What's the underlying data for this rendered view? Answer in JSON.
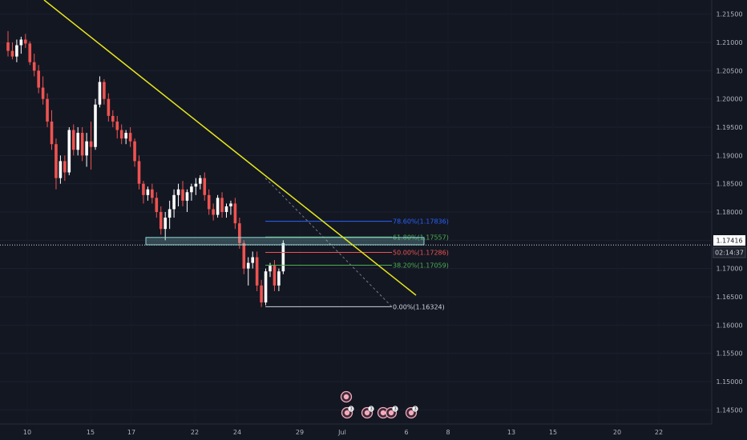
{
  "chart_data": {
    "type": "candlestick",
    "ylim": [
      1.1425,
      1.2175
    ],
    "y_ticks": [
      "1.21500",
      "1.21000",
      "1.20500",
      "1.20000",
      "1.19500",
      "1.19000",
      "1.18500",
      "1.18000",
      "1.17500",
      "1.17000",
      "1.16500",
      "1.16000",
      "1.15500",
      "1.15000",
      "1.14500"
    ],
    "x_ticks": [
      "10",
      "15",
      "17",
      "22",
      "24",
      "29",
      "Jul",
      "6",
      "8",
      "13",
      "15",
      "20",
      "22"
    ],
    "current_price": "1.17416",
    "countdown": "02:14:37",
    "colors": {
      "up": "#ffffff",
      "down": "#ef5350",
      "background": "#131722",
      "trendline": "#e6e619",
      "zone": "#8fd9d9"
    },
    "candles": [
      [
        1.21,
        1.212,
        1.2075,
        1.2085
      ],
      [
        1.2085,
        1.21,
        1.207,
        1.2075
      ],
      [
        1.2075,
        1.2105,
        1.2065,
        1.2095
      ],
      [
        1.2095,
        1.211,
        1.208,
        1.2105
      ],
      [
        1.2105,
        1.2115,
        1.209,
        1.2098
      ],
      [
        1.2098,
        1.2102,
        1.206,
        1.2065
      ],
      [
        1.2065,
        1.208,
        1.204,
        1.205
      ],
      [
        1.205,
        1.206,
        1.201,
        1.202
      ],
      [
        1.202,
        1.204,
        1.199,
        1.2
      ],
      [
        1.2,
        1.201,
        1.195,
        1.196
      ],
      [
        1.196,
        1.198,
        1.191,
        1.192
      ],
      [
        1.192,
        1.193,
        1.184,
        1.186
      ],
      [
        1.186,
        1.19,
        1.185,
        1.189
      ],
      [
        1.189,
        1.19,
        1.1855,
        1.187
      ],
      [
        1.187,
        1.195,
        1.1865,
        1.1945
      ],
      [
        1.1945,
        1.1955,
        1.19,
        1.191
      ],
      [
        1.191,
        1.195,
        1.19,
        1.194
      ],
      [
        1.194,
        1.195,
        1.189,
        1.19
      ],
      [
        1.19,
        1.194,
        1.188,
        1.1925
      ],
      [
        1.1925,
        1.196,
        1.1875,
        1.1915
      ],
      [
        1.1915,
        1.2,
        1.191,
        1.199
      ],
      [
        1.199,
        1.204,
        1.1985,
        1.203
      ],
      [
        1.203,
        1.2035,
        1.199,
        1.2
      ],
      [
        1.2,
        1.201,
        1.196,
        1.197
      ],
      [
        1.197,
        1.198,
        1.195,
        1.196
      ],
      [
        1.196,
        1.197,
        1.193,
        1.1945
      ],
      [
        1.1945,
        1.1955,
        1.192,
        1.193
      ],
      [
        1.193,
        1.1945,
        1.192,
        1.194
      ],
      [
        1.194,
        1.195,
        1.1915,
        1.1925
      ],
      [
        1.1925,
        1.193,
        1.188,
        1.189
      ],
      [
        1.189,
        1.19,
        1.184,
        1.185
      ],
      [
        1.185,
        1.1855,
        1.1815,
        1.183
      ],
      [
        1.183,
        1.1845,
        1.182,
        1.184
      ],
      [
        1.184,
        1.185,
        1.1815,
        1.1825
      ],
      [
        1.1825,
        1.1835,
        1.179,
        1.18
      ],
      [
        1.18,
        1.181,
        1.176,
        1.177
      ],
      [
        1.177,
        1.18,
        1.175,
        1.179
      ],
      [
        1.179,
        1.182,
        1.177,
        1.1805
      ],
      [
        1.1805,
        1.184,
        1.179,
        1.183
      ],
      [
        1.183,
        1.185,
        1.181,
        1.184
      ],
      [
        1.184,
        1.1855,
        1.181,
        1.182
      ],
      [
        1.182,
        1.184,
        1.18,
        1.1835
      ],
      [
        1.1835,
        1.185,
        1.182,
        1.1845
      ],
      [
        1.1845,
        1.186,
        1.183,
        1.185
      ],
      [
        1.185,
        1.1865,
        1.184,
        1.186
      ],
      [
        1.186,
        1.187,
        1.182,
        1.183
      ],
      [
        1.183,
        1.184,
        1.1795,
        1.1805
      ],
      [
        1.1805,
        1.1815,
        1.1785,
        1.1795
      ],
      [
        1.1795,
        1.183,
        1.179,
        1.1825
      ],
      [
        1.1825,
        1.1835,
        1.179,
        1.18
      ],
      [
        1.18,
        1.1815,
        1.179,
        1.181
      ],
      [
        1.181,
        1.182,
        1.1795,
        1.1815
      ],
      [
        1.1815,
        1.1825,
        1.177,
        1.178
      ],
      [
        1.178,
        1.179,
        1.1735,
        1.1745
      ],
      [
        1.1745,
        1.175,
        1.169,
        1.17
      ],
      [
        1.17,
        1.172,
        1.167,
        1.171
      ],
      [
        1.171,
        1.173,
        1.17,
        1.172
      ],
      [
        1.172,
        1.173,
        1.166,
        1.167
      ],
      [
        1.167,
        1.168,
        1.1632,
        1.164
      ],
      [
        1.164,
        1.17,
        1.1635,
        1.1695
      ],
      [
        1.1695,
        1.171,
        1.1685,
        1.1705
      ],
      [
        1.1705,
        1.1715,
        1.166,
        1.167
      ],
      [
        1.167,
        1.17,
        1.166,
        1.1695
      ],
      [
        1.1695,
        1.175,
        1.169,
        1.1745
      ]
    ],
    "fib_levels": [
      {
        "label": "78.60%(1.17836)",
        "value": 1.17836,
        "color": "#2962ff"
      },
      {
        "label": "61.80%(1.17557)",
        "value": 1.17557,
        "color": "#4caf50"
      },
      {
        "label": "50.00%(1.17286)",
        "value": 1.17286,
        "color": "#ef5350"
      },
      {
        "label": "38.20%(1.17059)",
        "value": 1.17059,
        "color": "#4caf50"
      },
      {
        "label": "0.00%(1.16324)",
        "value": 1.16324,
        "color": "#d1d4dc"
      }
    ],
    "support_zone": [
      1.1742,
      1.1755
    ],
    "event_icons": [
      {
        "icon": "news-flag-icon",
        "badge": ""
      },
      {
        "icon": "news-flag-icon",
        "badge": "3"
      },
      {
        "icon": "news-flag-icon",
        "badge": "3"
      },
      {
        "icon": "news-flag-icon",
        "badge": ""
      },
      {
        "icon": "news-flag-icon",
        "badge": "3"
      },
      {
        "icon": "news-flag-icon",
        "badge": "3"
      }
    ]
  }
}
